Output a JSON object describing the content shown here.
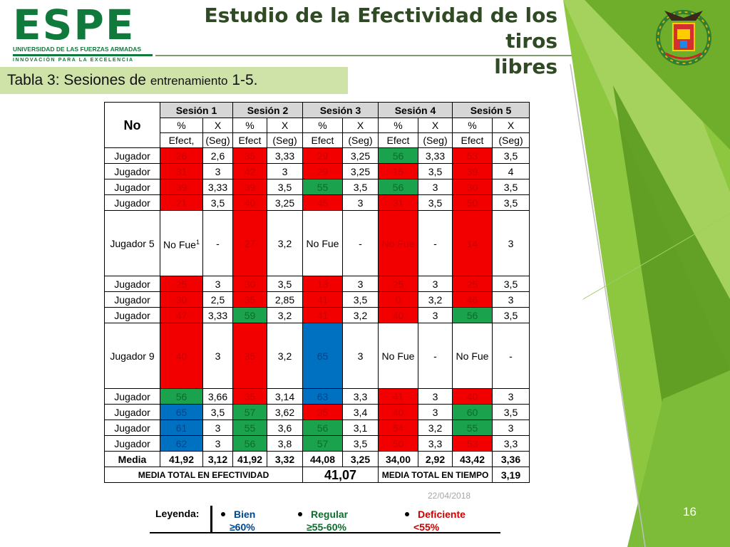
{
  "slide": {
    "logo": {
      "word": "ESPE",
      "subtitle": "UNIVERSIDAD DE LAS FUERZAS ARMADAS",
      "tagline": "INNOVACIÓN PARA LA EXCELENCIA"
    },
    "title_line1": "Estudio de la Efectividad de los tiros",
    "title_line2": "libres",
    "subtitle_a": "Tabla 3: Sesiones de ",
    "subtitle_b": "entrenamiento",
    "subtitle_c": " 1-5.",
    "date": "22/04/2018",
    "page_number": "16",
    "accent_colors": {
      "green_dark": "#2f4a24",
      "green_light": "#8dc63f",
      "band": "#cfe3a9"
    }
  },
  "table": {
    "no_header": "No",
    "sessions": [
      "Sesión 1",
      "Sesión 2",
      "Sesión 3",
      "Sesión 4",
      "Sesión 5"
    ],
    "subheader1": [
      "%",
      "X",
      "%",
      "X",
      "%",
      "X",
      "%",
      "X",
      "%",
      "X"
    ],
    "subheader2": [
      "Efect,",
      "(Seg)",
      "Efect",
      "(Seg)",
      "Efect",
      "(Seg)",
      "Efect",
      "(Seg)",
      "Efect",
      "(Seg)"
    ],
    "rows": [
      {
        "label": "Jugador",
        "cells": [
          "26",
          "2,6",
          "35",
          "3,33",
          "29",
          "3,25",
          "56",
          "3,33",
          "53",
          "3,5"
        ],
        "colors": [
          "red",
          "",
          "red",
          "",
          "red",
          "",
          "green",
          "",
          "red",
          ""
        ]
      },
      {
        "label": "Jugador",
        "cells": [
          "31",
          "3",
          "42",
          "3",
          "29",
          "3,25",
          "15",
          "3,5",
          "39",
          "4"
        ],
        "colors": [
          "red",
          "",
          "red",
          "",
          "red",
          "",
          "red",
          "",
          "red",
          ""
        ]
      },
      {
        "label": "Jugador",
        "cells": [
          "39",
          "3,33",
          "39",
          "3,5",
          "55",
          "3,5",
          "56",
          "3",
          "30",
          "3,5"
        ],
        "colors": [
          "red",
          "",
          "red",
          "",
          "green",
          "",
          "green",
          "",
          "red",
          ""
        ]
      },
      {
        "label": "Jugador",
        "cells": [
          "21",
          "3,5",
          "40",
          "3,25",
          "45",
          "3",
          "31",
          "3,5",
          "50",
          "3,5"
        ],
        "colors": [
          "red",
          "",
          "red",
          "",
          "red",
          "",
          "red",
          "",
          "red",
          ""
        ]
      },
      {
        "label": "Jugador 5",
        "tall": true,
        "note": "1",
        "cells": [
          "No Fue",
          "-",
          "27",
          "3,2",
          "No Fue",
          "-",
          "No Fue",
          "-",
          "14",
          "3"
        ],
        "colors": [
          "",
          "",
          "red",
          "",
          "",
          "",
          "red",
          "",
          "red",
          ""
        ]
      },
      {
        "label": "Jugador",
        "cells": [
          "25",
          "3",
          "30",
          "3,5",
          "13",
          "3",
          "25",
          "3",
          "25",
          "3,5"
        ],
        "colors": [
          "red",
          "",
          "red",
          "",
          "red",
          "",
          "red",
          "",
          "red",
          ""
        ]
      },
      {
        "label": "Jugador",
        "cells": [
          "30",
          "2,5",
          "35",
          "2,85",
          "41",
          "3,5",
          "0",
          "3,2",
          "46",
          "3"
        ],
        "colors": [
          "red",
          "",
          "red",
          "",
          "red",
          "",
          "red",
          "",
          "red",
          ""
        ]
      },
      {
        "label": "Jugador",
        "cells": [
          "47",
          "3,33",
          "59",
          "3,2",
          "41",
          "3,2",
          "40",
          "3",
          "56",
          "3,5"
        ],
        "colors": [
          "red",
          "",
          "green",
          "",
          "red",
          "",
          "red",
          "",
          "green",
          ""
        ]
      },
      {
        "label": "Jugador 9",
        "tall": true,
        "cells": [
          "40",
          "3",
          "35",
          "3,2",
          "65",
          "3",
          "No Fue",
          "-",
          "No Fue",
          "-"
        ],
        "colors": [
          "red",
          "",
          "red",
          "",
          "blue",
          "",
          "",
          "",
          "",
          ""
        ]
      },
      {
        "label": "Jugador",
        "cells": [
          "56",
          "3,66",
          "35",
          "3,14",
          "63",
          "3,3",
          "41",
          "3",
          "40",
          "3"
        ],
        "colors": [
          "green",
          "",
          "red",
          "",
          "blue",
          "",
          "red",
          "",
          "red",
          ""
        ]
      },
      {
        "label": "Jugador",
        "cells": [
          "65",
          "3,5",
          "57",
          "3,62",
          "35",
          "3,4",
          "40",
          "3",
          "60",
          "3,5"
        ],
        "colors": [
          "blue",
          "",
          "green",
          "",
          "red",
          "",
          "red",
          "",
          "green",
          ""
        ]
      },
      {
        "label": "Jugador",
        "cells": [
          "61",
          "3",
          "55",
          "3,6",
          "56",
          "3,1",
          "54",
          "3,2",
          "55",
          "3"
        ],
        "colors": [
          "blue",
          "",
          "green",
          "",
          "green",
          "",
          "red",
          "",
          "green",
          ""
        ]
      },
      {
        "label": "Jugador",
        "cells": [
          "62",
          "3",
          "56",
          "3,8",
          "57",
          "3,5",
          "50",
          "3,3",
          "53",
          "3,3"
        ],
        "colors": [
          "blue",
          "",
          "green",
          "",
          "green",
          "",
          "red",
          "",
          "red",
          ""
        ]
      }
    ],
    "media": {
      "label": "Media",
      "cells": [
        "41,92",
        "3,12",
        "41,92",
        "3,32",
        "44,08",
        "3,25",
        "34,00",
        "2,92",
        "43,42",
        "3,36"
      ]
    },
    "totals": {
      "efectividad_label": "MEDIA TOTAL EN EFECTIVIDAD",
      "efectividad_value": "41,07",
      "tiempo_label": "MEDIA TOTAL EN TIEMPO",
      "tiempo_value": "3,19"
    }
  },
  "legend": {
    "label": "Leyenda:",
    "items": [
      {
        "name": "Bien",
        "range": "≥60%",
        "color": "#00468c"
      },
      {
        "name": "Regular",
        "range": "≥55-60%",
        "color": "#0c6d2c"
      },
      {
        "name": "Deficiente",
        "range": "<55%",
        "color": "#cc0000"
      }
    ]
  }
}
